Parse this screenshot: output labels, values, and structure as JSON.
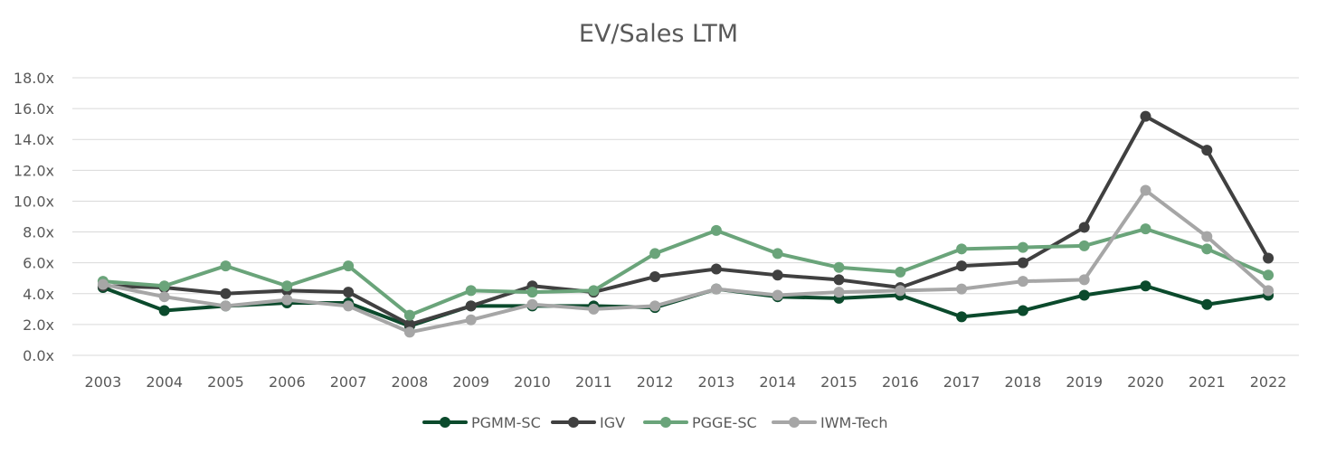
{
  "chart_data": {
    "type": "line",
    "title": "EV/Sales LTM",
    "xlabel": "",
    "ylabel": "",
    "categories": [
      "2003",
      "2004",
      "2005",
      "2006",
      "2007",
      "2008",
      "2009",
      "2010",
      "2011",
      "2012",
      "2013",
      "2014",
      "2015",
      "2016",
      "2017",
      "2018",
      "2019",
      "2020",
      "2021",
      "2022"
    ],
    "ylim": [
      0,
      18
    ],
    "yticks": [
      0,
      2,
      4,
      6,
      8,
      10,
      12,
      14,
      16,
      18
    ],
    "ytick_labels": [
      "0.0x",
      "2.0x",
      "4.0x",
      "6.0x",
      "8.0x",
      "10.0x",
      "12.0x",
      "14.0x",
      "16.0x",
      "18.0x"
    ],
    "grid": true,
    "legend_position": "bottom",
    "series": [
      {
        "name": "PGMM-SC",
        "color": "#0b4a2c",
        "values": [
          4.4,
          2.9,
          3.2,
          3.4,
          3.4,
          1.9,
          3.2,
          3.2,
          3.2,
          3.1,
          4.3,
          3.8,
          3.7,
          3.9,
          2.5,
          2.9,
          3.9,
          4.5,
          3.3,
          3.9
        ]
      },
      {
        "name": "IGV",
        "color": "#404040",
        "values": [
          4.5,
          4.4,
          4.0,
          4.2,
          4.1,
          2.0,
          3.2,
          4.5,
          4.1,
          5.1,
          5.6,
          5.2,
          4.9,
          4.4,
          5.8,
          6.0,
          8.3,
          15.5,
          13.3,
          6.3
        ]
      },
      {
        "name": "PGGE-SC",
        "color": "#6aa47a",
        "values": [
          4.8,
          4.5,
          5.8,
          4.5,
          5.8,
          2.6,
          4.2,
          4.1,
          4.2,
          6.6,
          8.1,
          6.6,
          5.7,
          5.4,
          6.9,
          7.0,
          7.1,
          8.2,
          6.9,
          5.2
        ]
      },
      {
        "name": "IWM-Tech",
        "color": "#a6a6a6",
        "values": [
          4.6,
          3.8,
          3.2,
          3.6,
          3.2,
          1.5,
          2.3,
          3.3,
          3.0,
          3.2,
          4.3,
          3.9,
          4.1,
          4.2,
          4.3,
          4.8,
          4.9,
          10.7,
          7.7,
          4.2
        ]
      }
    ]
  }
}
